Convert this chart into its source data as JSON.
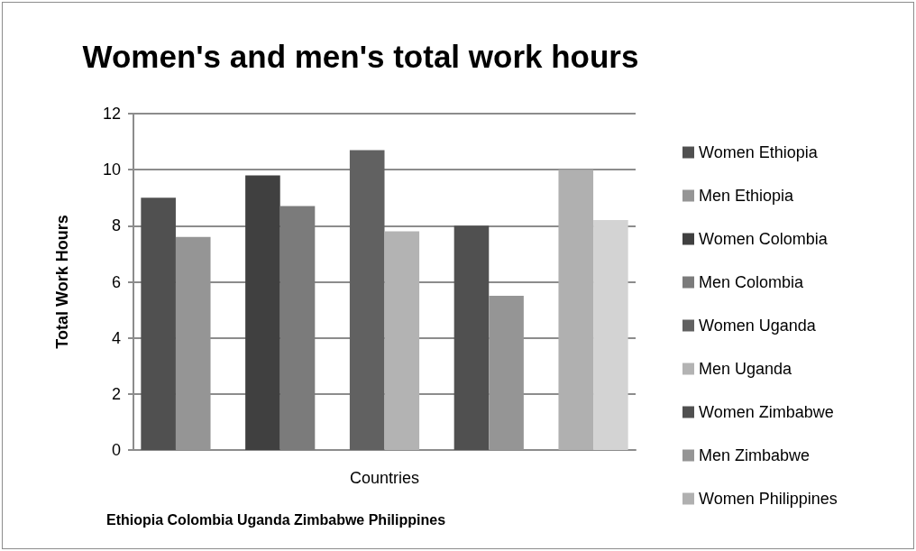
{
  "chart_data": {
    "type": "bar",
    "title": "Women's and men's total work hours",
    "ylabel": "Total Work Hours",
    "categories": [
      "Countries"
    ],
    "series": [
      {
        "name": "Women Ethiopia",
        "color": "#505050",
        "values": [
          9.0
        ]
      },
      {
        "name": "Men Ethiopia",
        "color": "#959595",
        "values": [
          7.6
        ]
      },
      {
        "name": "Women Colombia",
        "color": "#404040",
        "values": [
          9.8
        ]
      },
      {
        "name": "Men Colombia",
        "color": "#7b7b7b",
        "values": [
          8.7
        ]
      },
      {
        "name": "Women Uganda",
        "color": "#616161",
        "values": [
          10.7
        ]
      },
      {
        "name": "Men Uganda",
        "color": "#b3b3b3",
        "values": [
          7.8
        ]
      },
      {
        "name": "Women Zimbabwe",
        "color": "#505050",
        "values": [
          8.0
        ]
      },
      {
        "name": "Men Zimbabwe",
        "color": "#959595",
        "values": [
          5.5
        ]
      },
      {
        "name": "Women Philippines",
        "color": "#b0b0b0",
        "values": [
          10.0
        ]
      },
      {
        "color": "#d3d3d3",
        "values": [
          8.2
        ]
      }
    ],
    "ylim": [
      0,
      12
    ],
    "yticks": [
      0,
      2,
      4,
      6,
      8,
      10,
      12
    ],
    "grid": "y",
    "legend": "right",
    "annotations": [
      "Ethiopia Colombia Uganda Zimbabwe Philippines"
    ]
  }
}
